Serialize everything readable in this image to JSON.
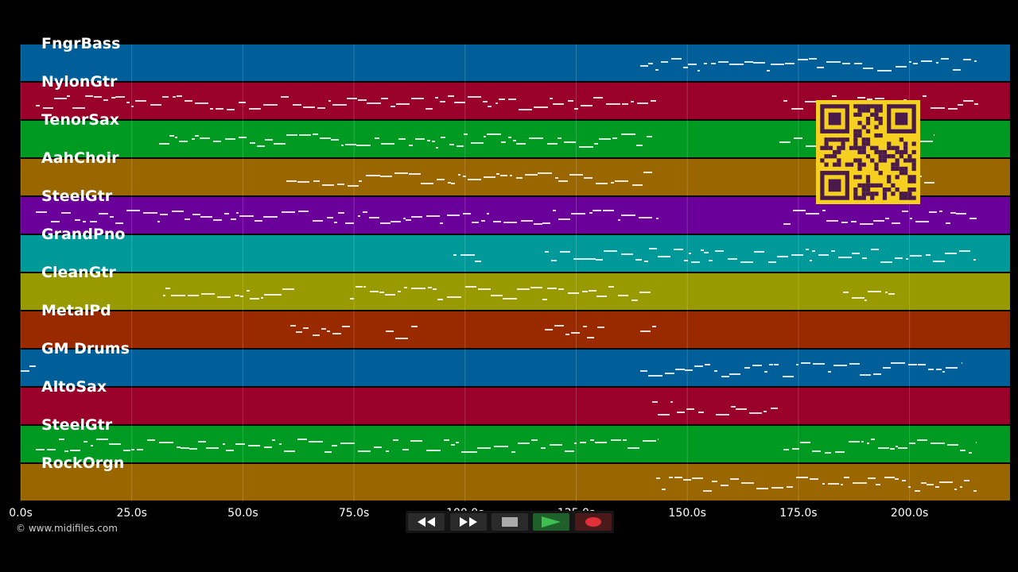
{
  "tracks": [
    {
      "label": "FngrBass",
      "color": "#005f99"
    },
    {
      "label": "NylonGtr",
      "color": "#99002a"
    },
    {
      "label": "TenorSax",
      "color": "#009922"
    },
    {
      "label": "AahChoir",
      "color": "#996600"
    },
    {
      "label": "SteelGtr",
      "color": "#6a0099"
    },
    {
      "label": "GrandPno",
      "color": "#009999"
    },
    {
      "label": "CleanGtr",
      "color": "#999900"
    },
    {
      "label": "MetalPd",
      "color": "#992a00"
    },
    {
      "label": "GM Drums",
      "color": "#005f99"
    },
    {
      "label": "AltoSax",
      "color": "#99002a"
    },
    {
      "label": "SteelGtr",
      "color": "#009922"
    },
    {
      "label": "RockOrgn",
      "color": "#996600"
    }
  ],
  "timeline": {
    "ticks": [
      "0.0s",
      "25.0s",
      "50.0s",
      "75.0s",
      "100.0s",
      "125.0s",
      "150.0s",
      "175.0s",
      "200.0s"
    ]
  },
  "transport": {
    "rewind_icon": "rewind-icon",
    "forward_icon": "fast-forward-icon",
    "stop_icon": "stop-icon",
    "play_icon": "play-icon",
    "record_icon": "record-icon"
  },
  "copyright": "© www.midifiles.com",
  "colors": {
    "background": "#000000",
    "qr_background": "#f5d020",
    "qr_foreground": "#4a1a4a"
  }
}
